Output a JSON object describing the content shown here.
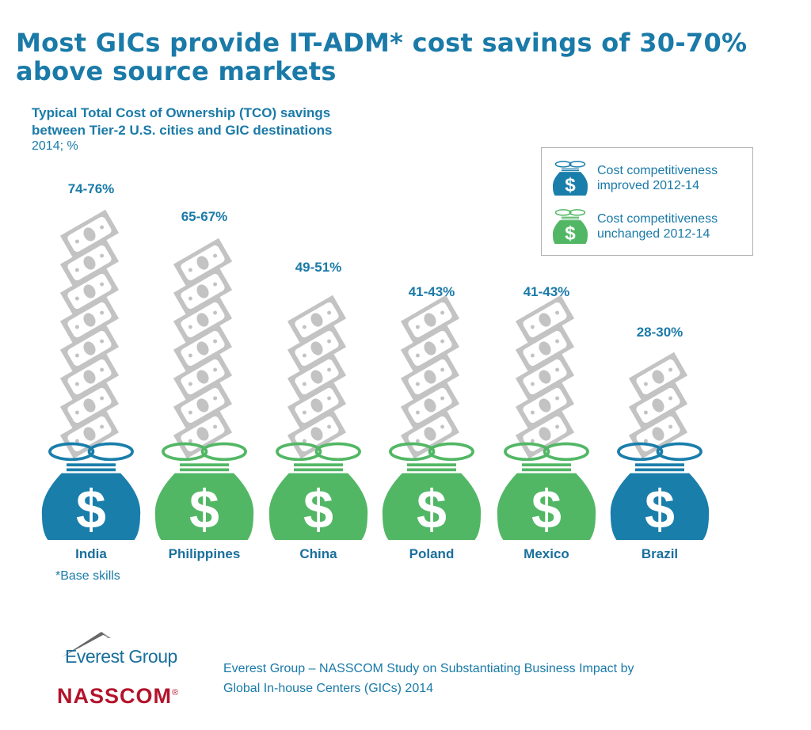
{
  "title_line1": "Most GICs provide IT-ADM* cost savings of 30-70%",
  "title_line2": "above source markets",
  "chart_data": {
    "type": "bar",
    "title": "Typical Total Cost of Ownership (TCO) savings between Tier-2 U.S. cities and GIC destinations",
    "subtitle_line1": "Typical Total Cost of Ownership (TCO) savings",
    "subtitle_line2": "between Tier-2 U.S. cities and GIC destinations",
    "unit": "2014; %",
    "categories": [
      "India",
      "Philippines",
      "China",
      "Poland",
      "Mexico",
      "Brazil"
    ],
    "labels": [
      "74-76%",
      "65-67%",
      "49-51%",
      "41-43%",
      "41-43%",
      "28-30%"
    ],
    "values_low": [
      74,
      65,
      49,
      41,
      41,
      28
    ],
    "values_high": [
      76,
      67,
      51,
      43,
      43,
      30
    ],
    "status": [
      "improved",
      "unchanged",
      "unchanged",
      "unchanged",
      "unchanged",
      "improved"
    ],
    "legend": [
      {
        "key": "improved",
        "line1": "Cost competitiveness",
        "line2": "improved 2012-14",
        "color": "#1a7eab"
      },
      {
        "key": "unchanged",
        "line1": "Cost competitiveness",
        "line2": "unchanged 2012-14",
        "color": "#52b765"
      }
    ],
    "legend_position": "top-right"
  },
  "note": "*Base skills",
  "source_line1": "Everest Group – NASSCOM Study on Substantiating Business Impact by",
  "source_line2": "Global In-house Centers (GICs) 2014",
  "logos": {
    "everest": "Everest Group",
    "nasscom": "NASSCOM",
    "reg": "®"
  },
  "colors": {
    "bill": "#c3c3c3",
    "text": "#1a7aa8"
  }
}
